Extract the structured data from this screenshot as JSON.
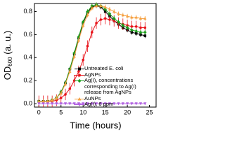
{
  "chart_data": {
    "type": "line",
    "xlabel": "Time (hours)",
    "ylabel": {
      "text": "OD",
      "subscript": "600",
      "suffix": " (a. u.)"
    },
    "x": [
      0,
      1,
      2,
      3,
      4,
      5,
      6,
      7,
      8,
      9,
      10,
      11,
      12,
      13,
      14,
      15,
      16,
      17,
      18,
      19,
      20,
      21,
      22,
      23,
      24
    ],
    "xlim": [
      -1,
      26.5
    ],
    "xticks": [
      0,
      5,
      10,
      15,
      20,
      25
    ],
    "ylim": [
      -0.03,
      0.87
    ],
    "yticks": [
      {
        "value": 0,
        "label": "0.0"
      },
      {
        "value": 0.2,
        "label": "0.2"
      },
      {
        "value": 0.4,
        "label": "0.4"
      },
      {
        "value": 0.6,
        "label": "0.6"
      },
      {
        "value": 0.8,
        "label": "0.8"
      }
    ],
    "series": [
      {
        "name": "Untreated E. coli",
        "color": "#000000",
        "marker": "square",
        "error": 0.02,
        "values": [
          0.02,
          0.02,
          0.02,
          0.03,
          0.05,
          0.1,
          0.18,
          0.3,
          0.43,
          0.57,
          0.7,
          0.79,
          0.84,
          0.85,
          0.84,
          0.8,
          0.76,
          0.72,
          0.69,
          0.66,
          0.64,
          0.62,
          0.61,
          0.6,
          0.59
        ]
      },
      {
        "name": "AgNPs",
        "color": "#e8141b",
        "marker": "circle",
        "error": 0.05,
        "values": [
          0.02,
          0.02,
          0.02,
          0.02,
          0.03,
          0.05,
          0.08,
          0.13,
          0.2,
          0.28,
          0.38,
          0.5,
          0.62,
          0.7,
          0.73,
          0.74,
          0.73,
          0.72,
          0.7,
          0.69,
          0.68,
          0.67,
          0.67,
          0.66,
          0.66
        ]
      },
      {
        "name": "Ag(I), concentrations corresponding to Ag(I) release from AgNPs",
        "color": "#1a9e1a",
        "marker": "diamond",
        "error": 0.02,
        "values": [
          0.02,
          0.02,
          0.02,
          0.03,
          0.05,
          0.1,
          0.18,
          0.3,
          0.44,
          0.58,
          0.71,
          0.8,
          0.85,
          0.86,
          0.85,
          0.82,
          0.78,
          0.74,
          0.71,
          0.68,
          0.66,
          0.64,
          0.63,
          0.62,
          0.62
        ]
      },
      {
        "name": "AuNPs",
        "color": "#f5a040",
        "marker": "triangle-up",
        "error": 0.02,
        "values": [
          0.02,
          0.02,
          0.02,
          0.03,
          0.05,
          0.09,
          0.17,
          0.28,
          0.41,
          0.55,
          0.68,
          0.77,
          0.83,
          0.85,
          0.85,
          0.84,
          0.82,
          0.8,
          0.78,
          0.77,
          0.76,
          0.75,
          0.75,
          0.74,
          0.74
        ]
      },
      {
        "name": "Ag(I), 6 ppm",
        "color": "#b060e0",
        "marker": "triangle-down",
        "error": 0.01,
        "values": [
          0,
          0,
          0,
          0,
          0,
          0,
          0,
          0,
          0,
          0,
          0,
          0,
          0,
          0,
          0,
          0,
          0,
          0,
          0,
          0,
          0,
          0,
          0,
          0,
          0
        ]
      }
    ]
  }
}
